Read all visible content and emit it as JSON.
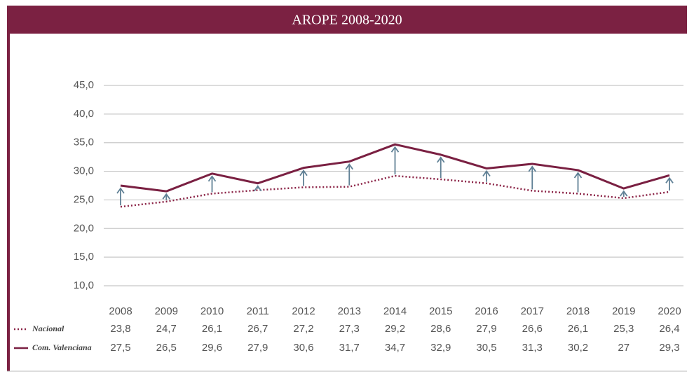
{
  "chart_data": {
    "type": "line",
    "title": "AROPE 2008-2020",
    "categories": [
      "2008",
      "2009",
      "2010",
      "2011",
      "2012",
      "2013",
      "2014",
      "2015",
      "2016",
      "2017",
      "2018",
      "2019",
      "2020"
    ],
    "series": [
      {
        "name": "Nacional",
        "color": "#8b2346",
        "style": "dotted",
        "values": [
          23.8,
          24.7,
          26.1,
          26.7,
          27.2,
          27.3,
          29.2,
          28.6,
          27.9,
          26.6,
          26.1,
          25.3,
          26.4
        ],
        "value_labels": [
          "23,8",
          "24,7",
          "26,1",
          "26,7",
          "27,2",
          "27,3",
          "29,2",
          "28,6",
          "27,9",
          "26,6",
          "26,1",
          "25,3",
          "26,4"
        ]
      },
      {
        "name": "Com. Valenciana",
        "color": "#7a2042",
        "style": "solid",
        "values": [
          27.5,
          26.5,
          29.6,
          27.9,
          30.6,
          31.7,
          34.7,
          32.9,
          30.5,
          31.3,
          30.2,
          27,
          29.3
        ],
        "value_labels": [
          "27,5",
          "26,5",
          "29,6",
          "27,9",
          "30,6",
          "31,7",
          "34,7",
          "32,9",
          "30,5",
          "31,3",
          "30,2",
          "27",
          "29,3"
        ]
      }
    ],
    "arrow_color": "#5f8095",
    "ylim": [
      10,
      45
    ],
    "yticks": [
      {
        "value": 10,
        "label": "10,0"
      },
      {
        "value": 15,
        "label": "15,0"
      },
      {
        "value": 20,
        "label": "20,0"
      },
      {
        "value": 25,
        "label": "25,0"
      },
      {
        "value": 30,
        "label": "30,0"
      },
      {
        "value": 35,
        "label": "35,0"
      },
      {
        "value": 40,
        "label": "40,0"
      },
      {
        "value": 45,
        "label": "45,0"
      }
    ],
    "grid": true
  }
}
